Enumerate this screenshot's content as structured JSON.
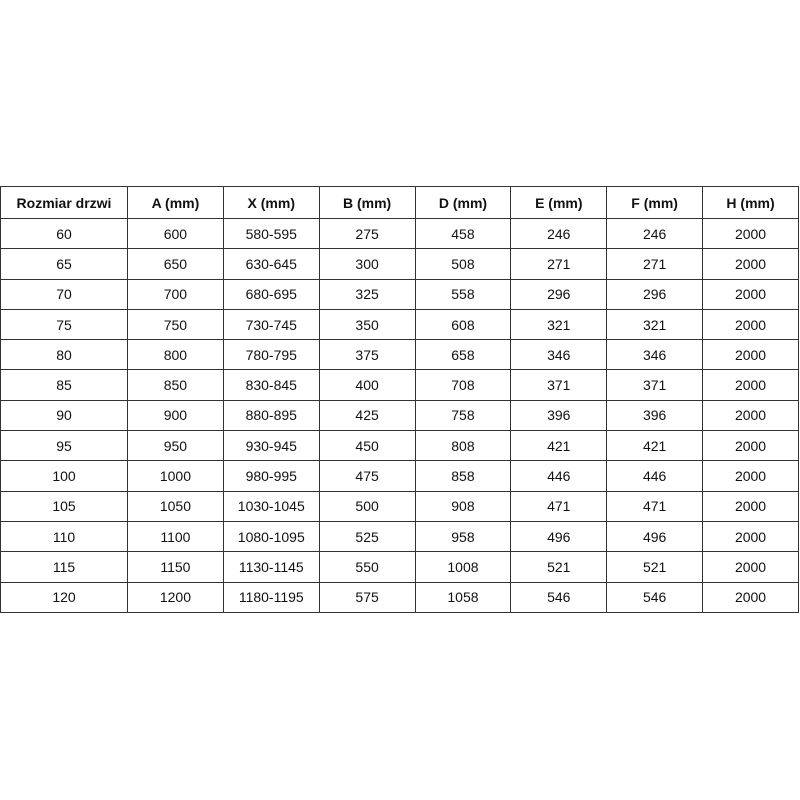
{
  "table": {
    "headers": [
      "Rozmiar drzwi",
      "A (mm)",
      "X (mm)",
      "B (mm)",
      "D (mm)",
      "E (mm)",
      "F (mm)",
      "H (mm)"
    ],
    "rows": [
      [
        60,
        600,
        "580-595",
        275,
        458,
        246,
        246,
        2000
      ],
      [
        65,
        650,
        "630-645",
        300,
        508,
        271,
        271,
        2000
      ],
      [
        70,
        700,
        "680-695",
        325,
        558,
        296,
        296,
        2000
      ],
      [
        75,
        750,
        "730-745",
        350,
        608,
        321,
        321,
        2000
      ],
      [
        80,
        800,
        "780-795",
        375,
        658,
        346,
        346,
        2000
      ],
      [
        85,
        850,
        "830-845",
        400,
        708,
        371,
        371,
        2000
      ],
      [
        90,
        900,
        "880-895",
        425,
        758,
        396,
        396,
        2000
      ],
      [
        95,
        950,
        "930-945",
        450,
        808,
        421,
        421,
        2000
      ],
      [
        100,
        1000,
        "980-995",
        475,
        858,
        446,
        446,
        2000
      ],
      [
        105,
        1050,
        "1030-1045",
        500,
        908,
        471,
        471,
        2000
      ],
      [
        110,
        1100,
        "1080-1095",
        525,
        958,
        496,
        496,
        2000
      ],
      [
        115,
        1150,
        "1130-1145",
        550,
        1008,
        521,
        521,
        2000
      ],
      [
        120,
        1200,
        "1180-1195",
        575,
        1058,
        546,
        546,
        2000
      ]
    ]
  }
}
